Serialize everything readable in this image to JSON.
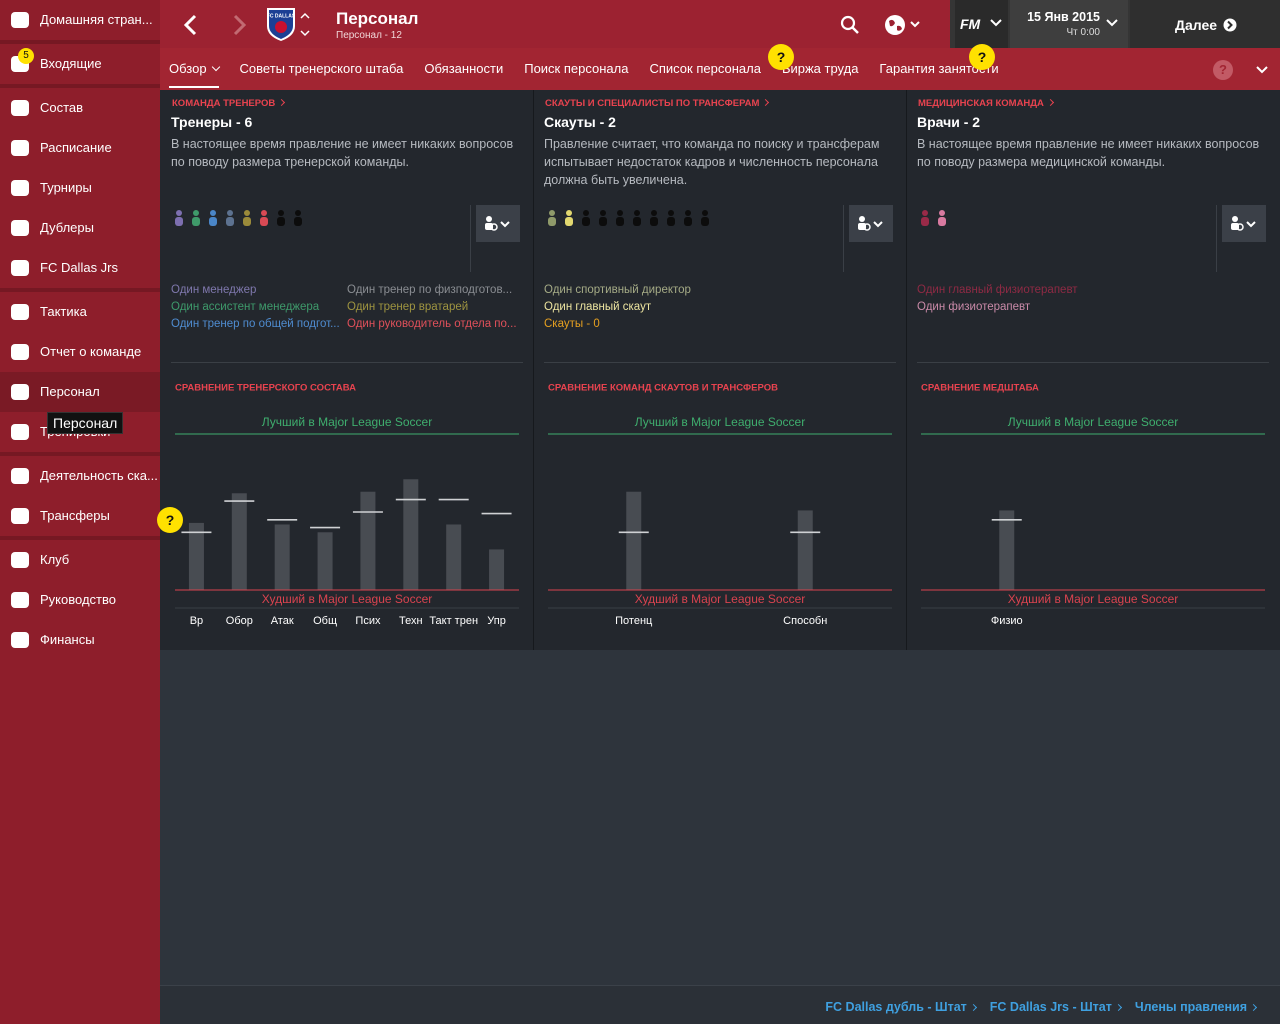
{
  "sidebar": {
    "groups": [
      [
        {
          "label": "Домашняя стран..."
        }
      ],
      [
        {
          "label": "Входящие",
          "badge": "5"
        }
      ],
      [
        {
          "label": "Состав"
        },
        {
          "label": "Расписание"
        },
        {
          "label": "Турниры"
        },
        {
          "label": "Дублеры"
        },
        {
          "label": "FC Dallas Jrs"
        }
      ],
      [
        {
          "label": "Тактика"
        },
        {
          "label": "Отчет о команде"
        },
        {
          "label": "Персонал",
          "active": true
        },
        {
          "label": "Тренировки"
        }
      ],
      [
        {
          "label": "Деятельность ска..."
        },
        {
          "label": "Трансферы"
        }
      ],
      [
        {
          "label": "Клуб"
        },
        {
          "label": "Руководство"
        },
        {
          "label": "Финансы"
        }
      ]
    ],
    "tooltip": "Персонал"
  },
  "header": {
    "title": "Персонал",
    "subtitle": "Персонал - 12",
    "logo_text": "FC DALLAS",
    "brand": "FM",
    "date": "15 Янв 2015",
    "time": "Чт 0:00",
    "continue": "Далее"
  },
  "tabs": [
    {
      "label": "Обзор",
      "active": true
    },
    {
      "label": "Советы тренерского штаба"
    },
    {
      "label": "Обязанности"
    },
    {
      "label": "Поиск персонала"
    },
    {
      "label": "Список персонала"
    },
    {
      "label": "Биржа труда"
    },
    {
      "label": "Гарантия занятости"
    }
  ],
  "help_marker": "?",
  "panels": [
    {
      "category": "КОМАНДА ТРЕНЕРОВ",
      "title": "Тренеры - 6",
      "description": "В настоящее время правление не имеет никаких вопросов по поводу размера тренерской команды.",
      "staff_icons": [
        "#7d6fb0",
        "#3f9a6a",
        "#4a86c8",
        "#5d7290",
        "#9a8a3a",
        "#d94a55",
        "#0c0c0c",
        "#0c0c0c"
      ],
      "staff": [
        [
          {
            "text": "Один менеджер",
            "color": "#7f78ad"
          },
          {
            "text": "Один ассистент менеджера",
            "color": "#3e9a6b"
          },
          {
            "text": "Один тренер по общей подгот...",
            "color": "#4f8cd0"
          }
        ],
        [
          {
            "text": "Один тренер по физподготов...",
            "color": "#8a8d92"
          },
          {
            "text": "Один тренер вратарей",
            "color": "#9e9440"
          },
          {
            "text": "Один руководитель отдела по...",
            "color": "#e0505a"
          }
        ]
      ],
      "chart": {
        "type": "bar",
        "title": "СРАВНЕНИЕ ТРЕНЕРСКОГО СОСТАВА",
        "best_label": "Лучший в Major League Soccer",
        "worst_label": "Худший в Major League Soccer",
        "categories": [
          "Вр",
          "Обор",
          "Атак",
          "Общ",
          "Псих",
          "Техн",
          "Такт трен",
          "Упр"
        ],
        "values": [
          43,
          62,
          42,
          37,
          63,
          71,
          42,
          26
        ],
        "markers": [
          37,
          57,
          45,
          40,
          50,
          58,
          58,
          49
        ],
        "ylim": [
          0,
          100
        ]
      }
    },
    {
      "category": "СКАУТЫ И СПЕЦИАЛИСТЫ ПО ТРАНСФЕРАМ",
      "title": "Скауты - 2",
      "description": "Правление считает, что команда по поиску и трансферам испытывает недостаток кадров и численность персонала должна быть увеличена.",
      "staff_icons": [
        "#8f9a6a",
        "#e2d870",
        "#0c0c0c",
        "#0c0c0c",
        "#0c0c0c",
        "#0c0c0c",
        "#0c0c0c",
        "#0c0c0c",
        "#0c0c0c",
        "#0c0c0c"
      ],
      "staff": [
        [
          {
            "text": "Один спортивный директор",
            "color": "#a5ab86"
          },
          {
            "text": "Один главный скаут",
            "color": "#ece4a0"
          },
          {
            "text": "Скауты - 0",
            "color": "#e6a020"
          }
        ]
      ],
      "chart": {
        "type": "bar",
        "title": "СРАВНЕНИЕ КОМАНД СКАУТОВ И ТРАНСФЕРОВ",
        "best_label": "Лучший в Major League Soccer",
        "worst_label": "Худший в Major League Soccer",
        "categories": [
          "Потенц",
          "Способн"
        ],
        "values": [
          63,
          51
        ],
        "markers": [
          37,
          37
        ],
        "ylim": [
          0,
          100
        ]
      }
    },
    {
      "category": "МЕДИЦИНСКАЯ КОМАНДА",
      "title": "Врачи - 2",
      "description": "В настоящее время правление не имеет никаких вопросов по поводу размера медицинской команды.",
      "staff_icons": [
        "#9a2a48",
        "#d87aa0"
      ],
      "staff": [
        [
          {
            "text": "Один главный физиотерапевт",
            "color": "#8e2a44"
          },
          {
            "text": "Один физиотерапевт",
            "color": "#c98aa8"
          }
        ]
      ],
      "chart": {
        "type": "bar",
        "title": "СРАВНЕНИЕ МЕДШТАБА",
        "best_label": "Лучший в Major League Soccer",
        "worst_label": "Худший в Major League Soccer",
        "categories": [
          "Физио"
        ],
        "values": [
          51
        ],
        "markers": [
          45
        ],
        "ylim": [
          0,
          100
        ]
      }
    }
  ],
  "footer_links": [
    "FC Dallas дубль - Штат",
    "FC Dallas Jrs - Штат",
    "Члены правления"
  ]
}
